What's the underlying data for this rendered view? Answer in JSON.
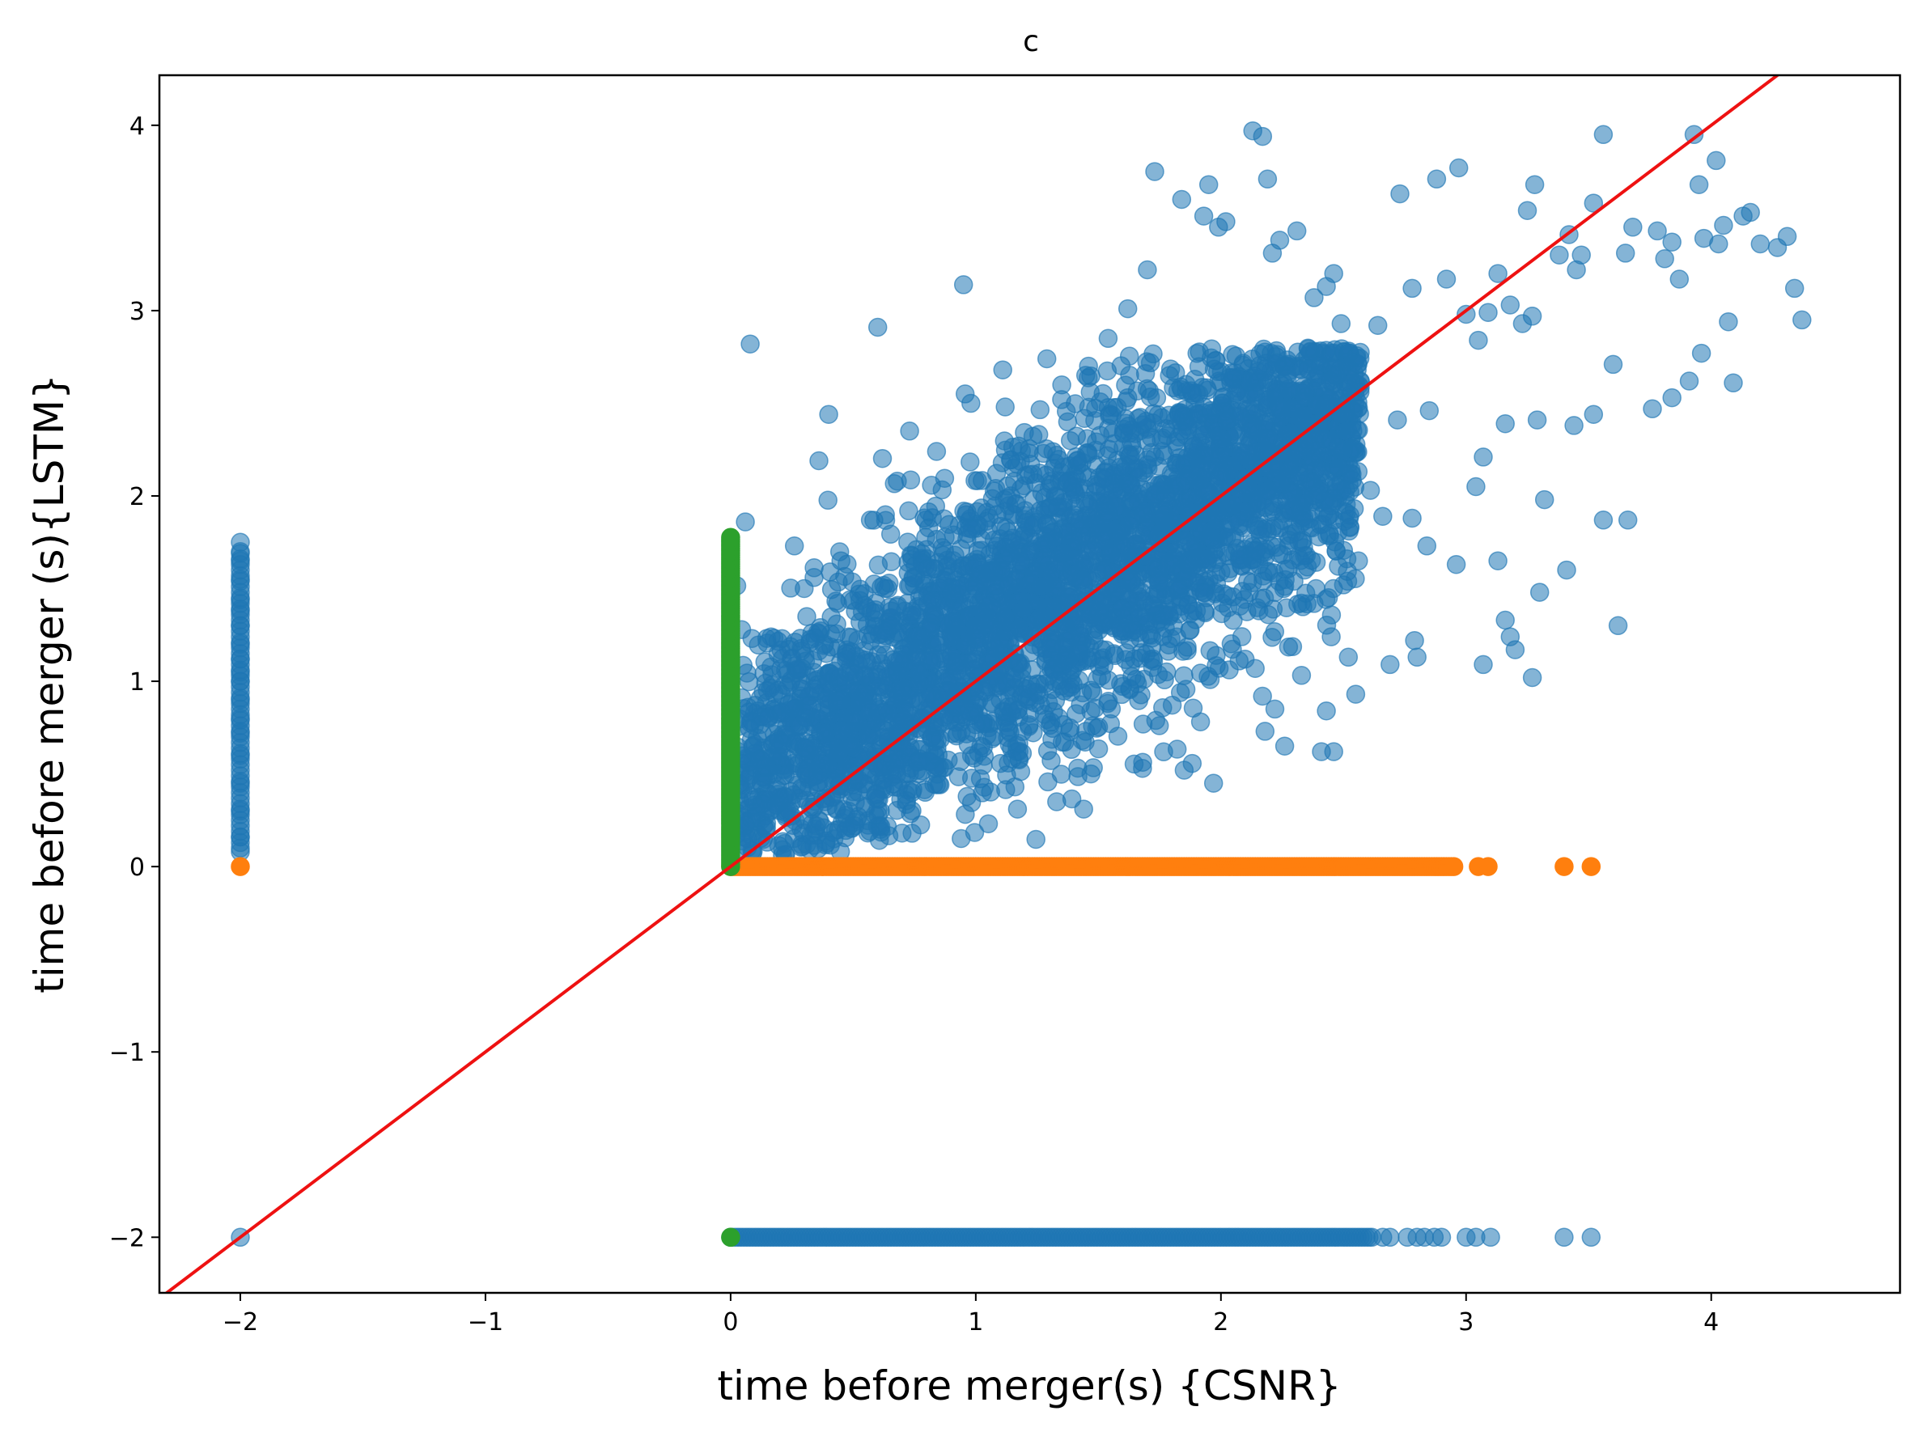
{
  "chart_data": {
    "type": "scatter",
    "title": "c",
    "xlabel": "time before merger(s) {CSNR}",
    "ylabel": "time before merger (s){LSTM}",
    "xlim": [
      -2.33,
      4.77
    ],
    "ylim": [
      -2.3,
      4.27
    ],
    "xticks": [
      -2,
      -1,
      0,
      1,
      2,
      3,
      4
    ],
    "yticks": [
      -2,
      -1,
      0,
      1,
      2,
      3,
      4
    ],
    "xtick_labels": [
      "−2",
      "−1",
      "0",
      "1",
      "2",
      "3",
      "4"
    ],
    "ytick_labels": [
      "−2",
      "−1",
      "0",
      "1",
      "2",
      "3",
      "4"
    ],
    "grid": false,
    "legend": "none",
    "colors": {
      "blue": "#1f77b4",
      "orange": "#ff7f0e",
      "green": "#2ca02c",
      "reference_line": "#ee1111"
    },
    "series": [
      {
        "color": "blue",
        "alpha": 0.55,
        "description_points": [
          [
            0.08,
            2.82
          ],
          [
            0.6,
            2.91
          ],
          [
            0.4,
            2.44
          ],
          [
            0.36,
            2.19
          ],
          [
            0.26,
            1.73
          ],
          [
            0.06,
            1.86
          ],
          [
            0.95,
            3.14
          ],
          [
            1.11,
            2.68
          ],
          [
            1.29,
            2.74
          ],
          [
            1.54,
            2.85
          ],
          [
            1.62,
            3.01
          ],
          [
            1.7,
            3.22
          ],
          [
            1.73,
            3.75
          ],
          [
            1.84,
            3.6
          ],
          [
            1.93,
            3.51
          ],
          [
            1.99,
            3.45
          ],
          [
            1.95,
            3.68
          ],
          [
            2.02,
            3.48
          ],
          [
            2.13,
            3.97
          ],
          [
            2.17,
            3.94
          ],
          [
            2.19,
            3.71
          ],
          [
            2.21,
            3.31
          ],
          [
            2.24,
            3.38
          ],
          [
            2.31,
            3.43
          ],
          [
            2.38,
            3.07
          ],
          [
            2.46,
            3.2
          ],
          [
            2.43,
            3.13
          ],
          [
            2.49,
            2.93
          ],
          [
            2.64,
            2.92
          ],
          [
            2.73,
            3.63
          ],
          [
            2.78,
            3.12
          ],
          [
            2.88,
            3.71
          ],
          [
            2.97,
            3.77
          ],
          [
            2.92,
            3.17
          ],
          [
            3.0,
            2.98
          ],
          [
            3.05,
            2.84
          ],
          [
            3.09,
            2.99
          ],
          [
            3.13,
            3.2
          ],
          [
            3.18,
            3.03
          ],
          [
            3.23,
            2.93
          ],
          [
            3.27,
            2.97
          ],
          [
            3.25,
            3.54
          ],
          [
            3.28,
            3.68
          ],
          [
            3.38,
            3.3
          ],
          [
            3.42,
            3.41
          ],
          [
            3.45,
            3.22
          ],
          [
            3.47,
            3.3
          ],
          [
            3.52,
            3.58
          ],
          [
            3.56,
            3.95
          ],
          [
            3.65,
            3.31
          ],
          [
            3.68,
            3.45
          ],
          [
            3.78,
            3.43
          ],
          [
            3.81,
            3.28
          ],
          [
            3.84,
            3.37
          ],
          [
            3.87,
            3.17
          ],
          [
            3.93,
            3.95
          ],
          [
            3.95,
            3.68
          ],
          [
            3.97,
            3.39
          ],
          [
            4.03,
            3.36
          ],
          [
            4.05,
            3.46
          ],
          [
            4.02,
            3.81
          ],
          [
            4.07,
            2.94
          ],
          [
            4.09,
            2.61
          ],
          [
            4.13,
            3.51
          ],
          [
            4.16,
            3.53
          ],
          [
            4.2,
            3.36
          ],
          [
            4.27,
            3.34
          ],
          [
            4.31,
            3.4
          ],
          [
            4.34,
            3.12
          ],
          [
            4.37,
            2.95
          ],
          [
            3.96,
            2.77
          ],
          [
            3.91,
            2.62
          ],
          [
            3.84,
            2.53
          ],
          [
            3.76,
            2.47
          ],
          [
            3.6,
            2.71
          ],
          [
            3.52,
            2.44
          ],
          [
            3.44,
            2.38
          ],
          [
            3.29,
            2.41
          ],
          [
            3.16,
            2.39
          ],
          [
            3.07,
            2.21
          ],
          [
            3.04,
            2.05
          ],
          [
            3.13,
            1.65
          ],
          [
            2.96,
            1.63
          ],
          [
            2.84,
            1.73
          ],
          [
            2.78,
            1.88
          ],
          [
            3.32,
            1.98
          ],
          [
            3.56,
            1.87
          ],
          [
            3.41,
            1.6
          ],
          [
            3.66,
            1.87
          ],
          [
            3.62,
            1.3
          ],
          [
            3.16,
            1.33
          ],
          [
            3.18,
            1.24
          ],
          [
            3.2,
            1.17
          ],
          [
            3.3,
            1.48
          ],
          [
            3.27,
            1.02
          ],
          [
            3.07,
            1.09
          ],
          [
            2.8,
            1.13
          ],
          [
            2.69,
            1.09
          ],
          [
            2.79,
            1.22
          ],
          [
            2.45,
            1.24
          ],
          [
            2.52,
            1.13
          ],
          [
            2.55,
            0.93
          ],
          [
            2.43,
            0.84
          ],
          [
            2.46,
            0.62
          ],
          [
            2.41,
            0.62
          ],
          [
            2.26,
            0.65
          ],
          [
            2.22,
            0.85
          ],
          [
            2.18,
            0.73
          ],
          [
            1.97,
            0.45
          ],
          [
            1.85,
            0.52
          ],
          [
            1.68,
            0.53
          ],
          [
            1.47,
            0.5
          ],
          [
            1.44,
            0.31
          ],
          [
            1.33,
            0.35
          ],
          [
            1.17,
            0.31
          ],
          [
            1.16,
            0.43
          ],
          [
            0.74,
            0.18
          ],
          [
            0.52,
            0.27
          ],
          [
            0.35,
            0.22
          ],
          [
            0.44,
            0.2
          ],
          [
            0.12,
            0.58
          ],
          [
            0.09,
            0.36
          ],
          [
            0.07,
            0.15
          ],
          [
            0.15,
            0.95
          ],
          [
            0.21,
            1.23
          ],
          [
            0.3,
            1.5
          ],
          [
            0.45,
            1.65
          ],
          [
            0.57,
            1.87
          ],
          [
            0.68,
            2.08
          ],
          [
            0.73,
            2.35
          ],
          [
            0.84,
            2.24
          ],
          [
            0.98,
            2.5
          ],
          [
            1.12,
            2.48
          ],
          [
            1.35,
            2.52
          ],
          [
            1.46,
            2.7
          ],
          [
            1.62,
            2.53
          ],
          [
            1.79,
            2.65
          ],
          [
            1.91,
            2.55
          ],
          [
            2.08,
            2.43
          ],
          [
            2.19,
            2.49
          ],
          [
            2.27,
            2.33
          ],
          [
            2.34,
            2.28
          ],
          [
            2.41,
            2.13
          ],
          [
            2.53,
            2.12
          ],
          [
            2.61,
            2.03
          ],
          [
            2.72,
            2.41
          ],
          [
            2.85,
            2.46
          ],
          [
            2.66,
            1.89
          ],
          [
            2.33,
            1.75
          ],
          [
            2.5,
            1.52
          ],
          [
            2.38,
            1.42
          ]
        ],
        "cloud_band": {
          "x_range": [
            0.02,
            2.6
          ],
          "trend": "y approx 0.85*x + 0.35, spread approx 0.45",
          "y_range": [
            0.05,
            2.8
          ]
        },
        "vertical_strip": {
          "x": -2,
          "y_values": [
            -2.0,
            0.08,
            0.16,
            0.3,
            0.45,
            0.6,
            0.72,
            0.8,
            0.9,
            1.0,
            1.05,
            1.12,
            1.2,
            1.3,
            1.38,
            1.44,
            1.55,
            1.65,
            1.7,
            1.75
          ]
        },
        "horizontal_strip": {
          "y": -2,
          "x_max": 3.5,
          "x_values_extra": [
            2.66,
            2.69,
            2.76,
            2.8,
            2.83,
            2.87,
            2.9,
            3.0,
            3.04,
            3.1,
            3.4,
            3.51
          ]
        }
      },
      {
        "color": "orange",
        "alpha": 1.0,
        "description_points": [
          [
            -2.0,
            0.0
          ],
          [
            3.05,
            0.0
          ],
          [
            3.09,
            0.0
          ],
          [
            3.4,
            0.0
          ],
          [
            3.51,
            0.0
          ]
        ],
        "horizontal_strip": {
          "y": 0,
          "x_range": [
            0.0,
            2.95
          ]
        }
      },
      {
        "color": "green",
        "alpha": 1.0,
        "vertical_strip": {
          "x": 0,
          "y_range": [
            0.0,
            1.78
          ]
        },
        "description_points": [
          [
            0.0,
            -2.0
          ]
        ]
      }
    ],
    "reference_line": {
      "slope": 1,
      "intercept": 0,
      "color": "reference_line"
    }
  }
}
